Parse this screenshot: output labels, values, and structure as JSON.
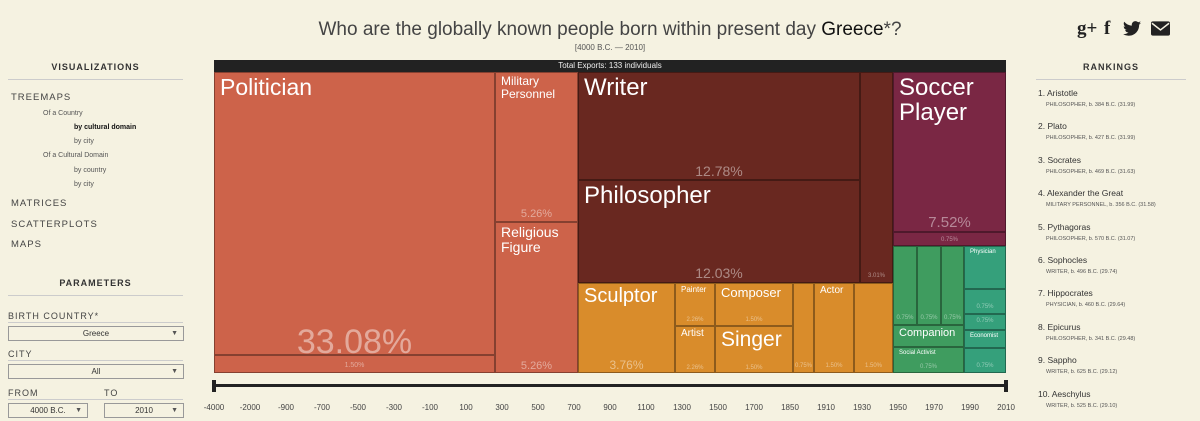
{
  "header": {
    "title_prefix": "Who are the globally known people born within present day ",
    "title_country": "Greece",
    "title_suffix": "*?",
    "date_range": "[4000 B.C. — 2010]",
    "share_icons": {
      "gplus": "g+",
      "facebook": "f",
      "twitter": "🐦",
      "email": "✉"
    }
  },
  "sidebar": {
    "visualizations_heading": "VISUALIZATIONS",
    "treemaps": "TREEMAPS",
    "of_a_country": "Of a Country",
    "by_cultural_domain": "by cultural domain",
    "by_city_1": "by city",
    "of_a_cultural_domain": "Of a Cultural Domain",
    "by_country": "by country",
    "by_city_2": "by city",
    "matrices": "MATRICES",
    "scatterplots": "SCATTERPLOTS",
    "maps": "MAPS",
    "parameters_heading": "PARAMETERS",
    "birth_country_label": "BIRTH COUNTRY*",
    "birth_country_value": "Greece",
    "city_label": "CITY",
    "city_value": "All",
    "from_label": "FROM",
    "from_value": "4000 B.C.",
    "to_label": "TO",
    "to_value": "2010"
  },
  "treemap": {
    "header": "Total Exports: 133 individuals",
    "cells": [
      {
        "label": "Politician",
        "pct": "33.08%",
        "color": "#cd634a"
      },
      {
        "label": "",
        "pct": "1.50%",
        "color": "#cd634a"
      },
      {
        "label": "Military Personnel",
        "pct": "5.26%",
        "color": "#cd634a"
      },
      {
        "label": "Religious Figure",
        "pct": "5.26%",
        "color": "#cd634a"
      },
      {
        "label": "Writer",
        "pct": "12.78%",
        "color": "#692820"
      },
      {
        "label": "Philosopher",
        "pct": "12.03%",
        "color": "#692820"
      },
      {
        "label": "",
        "pct": "3.01%",
        "color": "#692820"
      },
      {
        "label": "Soccer Player",
        "pct": "7.52%",
        "color": "#7a2744"
      },
      {
        "label": "",
        "pct": "0.75%",
        "color": "#7a2744"
      },
      {
        "label": "Sculptor",
        "pct": "3.76%",
        "color": "#d98c2b"
      },
      {
        "label": "Painter",
        "pct": "2.26%",
        "color": "#d98c2b"
      },
      {
        "label": "Artist",
        "pct": "2.26%",
        "color": "#d98c2b"
      },
      {
        "label": "Composer",
        "pct": "1.50%",
        "color": "#d98c2b"
      },
      {
        "label": "Singer",
        "pct": "1.50%",
        "color": "#d98c2b"
      },
      {
        "label": "",
        "pct": "0.75%",
        "color": "#d98c2b"
      },
      {
        "label": "Actor",
        "pct": "1.50%",
        "color": "#d98c2b"
      },
      {
        "label": "",
        "pct": "1.50%",
        "color": "#d98c2b"
      },
      {
        "label": "",
        "pct": "0.75%",
        "color": "#3f9c5f"
      },
      {
        "label": "",
        "pct": "0.75%",
        "color": "#3f9c5f"
      },
      {
        "label": "",
        "pct": "0.75%",
        "color": "#3f9c5f"
      },
      {
        "label": "Physician",
        "pct": "",
        "color": "#35a07b"
      },
      {
        "label": "",
        "pct": "0.75%",
        "color": "#35a07b"
      },
      {
        "label": "",
        "pct": "0.75%",
        "color": "#35a07b"
      },
      {
        "label": "Economist",
        "pct": "",
        "color": "#35a07b"
      },
      {
        "label": "Companion",
        "pct": "",
        "color": "#3f9c5f"
      },
      {
        "label": "Social Activist",
        "pct": "0.75%",
        "color": "#3f9c5f"
      },
      {
        "label": "",
        "pct": "0.75%",
        "color": "#35a07b"
      }
    ]
  },
  "timeline": {
    "ticks": [
      "-4000",
      "-2000",
      "-900",
      "-700",
      "-500",
      "-300",
      "-100",
      "100",
      "300",
      "500",
      "700",
      "900",
      "1100",
      "1300",
      "1500",
      "1700",
      "1850",
      "1910",
      "1930",
      "1950",
      "1970",
      "1990",
      "2010"
    ]
  },
  "rankings": {
    "heading": "RANKINGS",
    "items": [
      {
        "name": "1. Aristotle",
        "sub": "PHILOSOPHER, b. 384 B.C. (31.99)"
      },
      {
        "name": "2. Plato",
        "sub": "PHILOSOPHER, b. 427 B.C. (31.99)"
      },
      {
        "name": "3. Socrates",
        "sub": "PHILOSOPHER, b. 469 B.C. (31.63)"
      },
      {
        "name": "4. Alexander the Great",
        "sub": "MILITARY PERSONNEL, b. 356 B.C. (31.58)"
      },
      {
        "name": "5. Pythagoras",
        "sub": "PHILOSOPHER, b. 570 B.C. (31.07)"
      },
      {
        "name": "6. Sophocles",
        "sub": "WRITER, b. 496 B.C. (29.74)"
      },
      {
        "name": "7. Hippocrates",
        "sub": "PHYSICIAN, b. 460 B.C. (29.64)"
      },
      {
        "name": "8. Epicurus",
        "sub": "PHILOSOPHER, b. 341 B.C. (29.48)"
      },
      {
        "name": "9. Sappho",
        "sub": "WRITER, b. 625 B.C. (29.12)"
      },
      {
        "name": "10. Aeschylus",
        "sub": "WRITER, b. 525 B.C. (29.10)"
      }
    ]
  }
}
